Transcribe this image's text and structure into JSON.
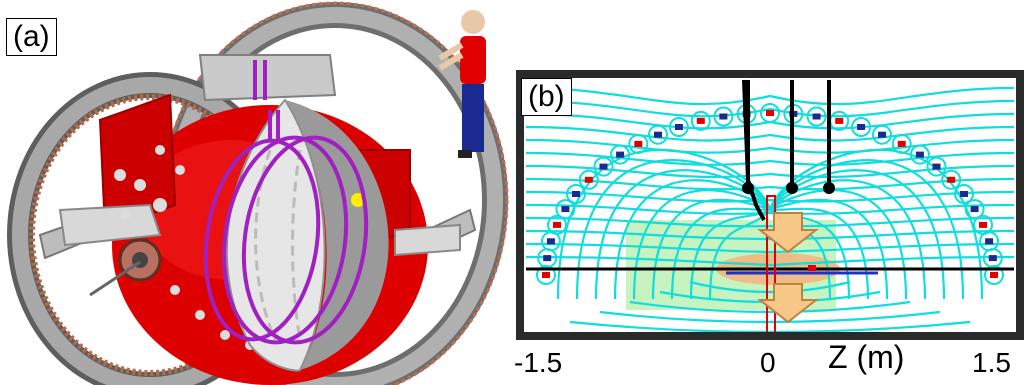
{
  "panel_a": {
    "label": "(a)"
  },
  "panel_b": {
    "label": "(b)",
    "axis_title": "Z (m)",
    "tick_labels": [
      "-1.5",
      "0",
      "1.5"
    ]
  },
  "colors": {
    "vessel_red": "#e00000",
    "coil_magenta": "#a020c0",
    "field_line_cyan": "#11dddd",
    "plasma_green": "#b8f0b0",
    "plasma_orange": "#f5b27a",
    "arrow_fill": "#f8c888",
    "frame_dark": "#2a2a2a"
  }
}
